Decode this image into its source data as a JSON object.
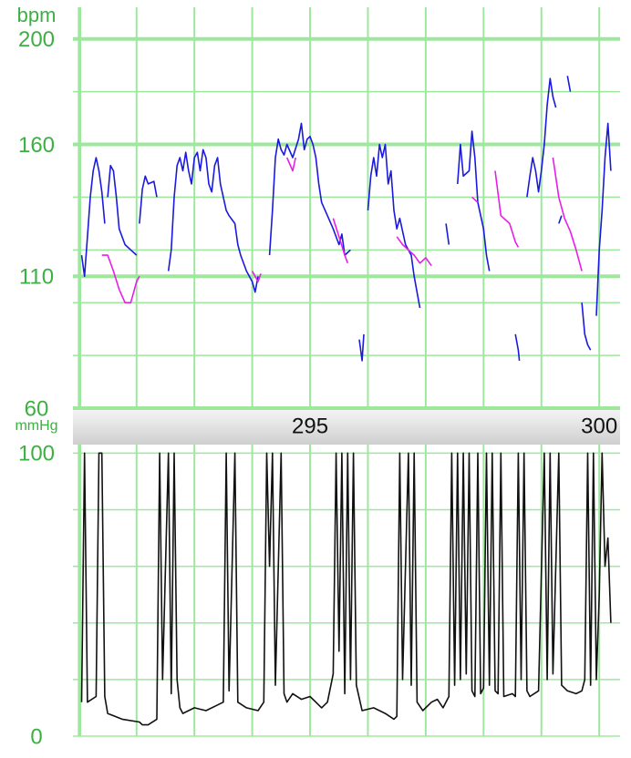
{
  "chart_data": [
    {
      "type": "line",
      "y_label": "bpm",
      "xlim": [
        290.9,
        300.36
      ],
      "ylim": [
        60,
        212
      ],
      "xticks": [
        295,
        300
      ],
      "yticks": [
        60,
        110,
        160,
        200
      ],
      "x_gridlines": [
        291,
        292,
        293,
        294,
        295,
        296,
        297,
        298,
        299,
        300
      ],
      "y_gridlines": [
        80,
        100,
        120,
        140,
        180
      ],
      "grid_color": "#9ee89e",
      "series": [
        {
          "color": "#1a1adf",
          "x": [
            291.05,
            291.1,
            291.15,
            291.2,
            291.25,
            291.3,
            291.35,
            291.4,
            291.45,
            null,
            291.5,
            291.55,
            291.6,
            291.65,
            291.7,
            291.8,
            291.9,
            292.0,
            null,
            292.05,
            292.1,
            292.15,
            292.2,
            292.3,
            292.35,
            null,
            292.55,
            292.6,
            292.65,
            292.7,
            292.75,
            292.8,
            292.85,
            292.9,
            292.95,
            293.0,
            293.05,
            293.1,
            293.15,
            293.2,
            293.25,
            293.3,
            293.35,
            293.4,
            293.45,
            293.55,
            293.6,
            293.7,
            293.75,
            293.8,
            293.9,
            294.0,
            294.05,
            294.1,
            null,
            294.3,
            294.35,
            294.4,
            294.45,
            294.5,
            294.55,
            294.6,
            294.7,
            294.8,
            294.85,
            294.9,
            294.95,
            295.0,
            295.05,
            295.1,
            295.15,
            295.2,
            295.3,
            295.4,
            295.5,
            295.55,
            295.6,
            295.7,
            null,
            295.85,
            295.9,
            295.93,
            null,
            296.0,
            296.05,
            296.1,
            296.15,
            296.2,
            296.25,
            296.3,
            296.35,
            296.4,
            296.45,
            296.5,
            296.55,
            296.65,
            296.75,
            296.8,
            296.9,
            null,
            297.35,
            297.4,
            null,
            297.55,
            297.6,
            297.65,
            297.75,
            297.8,
            297.85,
            297.9,
            298.0,
            298.05,
            298.1,
            null,
            298.55,
            298.6,
            298.62,
            null,
            298.75,
            298.8,
            298.85,
            298.9,
            298.95,
            299.0,
            299.05,
            299.1,
            299.15,
            299.2,
            299.25,
            null,
            299.3,
            299.35,
            null,
            299.45,
            299.5,
            null,
            299.7,
            299.75,
            299.8,
            299.85,
            null,
            299.95,
            300.0,
            300.05,
            300.1,
            300.15,
            300.2
          ],
          "values": [
            118,
            110,
            125,
            140,
            150,
            155,
            150,
            142,
            130,
            null,
            140,
            152,
            150,
            140,
            128,
            122,
            120,
            118,
            null,
            130,
            143,
            148,
            145,
            146,
            140,
            null,
            112,
            120,
            140,
            152,
            155,
            150,
            157,
            150,
            145,
            155,
            157,
            150,
            158,
            155,
            145,
            142,
            152,
            155,
            145,
            135,
            133,
            130,
            122,
            118,
            112,
            108,
            104,
            110,
            null,
            118,
            135,
            155,
            162,
            158,
            156,
            160,
            155,
            162,
            168,
            158,
            162,
            163,
            160,
            155,
            145,
            138,
            133,
            128,
            122,
            126,
            118,
            120,
            null,
            86,
            78,
            88,
            null,
            135,
            148,
            155,
            148,
            160,
            155,
            160,
            145,
            150,
            135,
            128,
            132,
            122,
            118,
            110,
            98,
            null,
            130,
            122,
            null,
            145,
            160,
            148,
            150,
            165,
            155,
            138,
            128,
            118,
            112,
            null,
            88,
            82,
            78,
            null,
            140,
            148,
            155,
            150,
            142,
            150,
            160,
            175,
            185,
            178,
            174,
            null,
            130,
            133,
            null,
            186,
            180,
            null,
            100,
            88,
            84,
            82,
            null,
            95,
            120,
            135,
            155,
            168,
            150
          ]
        },
        {
          "color": "#e81ee8",
          "x": [
            291.4,
            291.5,
            291.6,
            291.7,
            291.8,
            291.9,
            292.0,
            292.05,
            null,
            294.0,
            294.1,
            294.15,
            null,
            294.6,
            294.7,
            294.75,
            null,
            295.4,
            295.5,
            295.6,
            295.65,
            null,
            296.5,
            296.6,
            296.8,
            296.9,
            297.0,
            297.1,
            null,
            297.8,
            297.9,
            null,
            298.2,
            298.3,
            298.45,
            298.55,
            298.6,
            null,
            299.2,
            299.3,
            299.4,
            299.5,
            299.6,
            299.7
          ],
          "values": [
            118,
            118,
            112,
            105,
            100,
            100,
            108,
            110,
            null,
            112,
            108,
            111,
            null,
            155,
            150,
            155,
            null,
            132,
            125,
            118,
            115,
            null,
            125,
            122,
            118,
            115,
            117,
            114,
            null,
            140,
            138,
            null,
            150,
            133,
            130,
            123,
            121,
            null,
            155,
            140,
            132,
            127,
            120,
            112
          ]
        }
      ]
    },
    {
      "type": "line",
      "y_label": "mmHg",
      "xlim": [
        290.9,
        300.36
      ],
      "ylim": [
        0,
        103
      ],
      "yticks": [
        0,
        100
      ],
      "x_gridlines": [
        291,
        292,
        293,
        294,
        295,
        296,
        297,
        298,
        299,
        300
      ],
      "y_gridlines": [
        20,
        40,
        60,
        80
      ],
      "grid_color": "#9ee89e",
      "series": [
        {
          "color": "#111111",
          "x": [
            291.05,
            291.1,
            291.15,
            291.3,
            291.35,
            291.4,
            291.45,
            291.5,
            291.75,
            292.05,
            292.1,
            292.2,
            292.35,
            292.4,
            292.45,
            292.55,
            292.6,
            292.65,
            292.7,
            292.75,
            292.8,
            293.0,
            293.2,
            293.4,
            293.5,
            293.55,
            293.6,
            293.7,
            293.75,
            293.9,
            294.1,
            294.2,
            294.25,
            294.3,
            294.35,
            294.4,
            294.5,
            294.55,
            294.6,
            294.7,
            294.85,
            295.0,
            295.1,
            295.2,
            295.3,
            295.4,
            295.45,
            295.5,
            295.55,
            295.6,
            295.65,
            295.7,
            295.75,
            295.8,
            295.9,
            296.1,
            296.3,
            296.45,
            296.5,
            296.55,
            296.6,
            296.7,
            296.75,
            296.8,
            296.85,
            296.95,
            297.1,
            297.2,
            297.3,
            297.4,
            297.45,
            297.5,
            297.55,
            297.6,
            297.65,
            297.7,
            297.75,
            297.8,
            297.85,
            297.9,
            297.95,
            298.0,
            298.05,
            298.1,
            298.15,
            298.2,
            298.25,
            298.3,
            298.35,
            298.5,
            298.55,
            298.6,
            298.65,
            298.7,
            298.75,
            298.8,
            298.95,
            299.05,
            299.1,
            299.15,
            299.2,
            299.3,
            299.35,
            299.45,
            299.6,
            299.7,
            299.75,
            299.8,
            299.85,
            299.9,
            299.95,
            300.0,
            300.05,
            300.1,
            300.15,
            300.2
          ],
          "values": [
            12,
            100,
            12,
            14,
            100,
            100,
            14,
            8,
            6,
            5,
            4,
            4,
            6,
            100,
            20,
            100,
            15,
            100,
            20,
            10,
            8,
            10,
            9,
            11,
            12,
            100,
            16,
            100,
            12,
            10,
            9,
            12,
            100,
            60,
            100,
            18,
            100,
            15,
            12,
            15,
            13,
            14,
            12,
            10,
            12,
            22,
            100,
            30,
            100,
            15,
            100,
            20,
            100,
            18,
            9,
            10,
            8,
            6,
            7,
            100,
            20,
            100,
            18,
            100,
            12,
            9,
            12,
            13,
            10,
            14,
            100,
            18,
            100,
            20,
            100,
            22,
            100,
            16,
            14,
            100,
            15,
            17,
            100,
            18,
            100,
            16,
            15,
            100,
            14,
            15,
            14,
            100,
            20,
            100,
            16,
            14,
            16,
            100,
            20,
            100,
            22,
            100,
            18,
            16,
            15,
            16,
            20,
            100,
            18,
            100,
            20,
            50,
            100,
            60,
            70,
            40
          ]
        }
      ]
    }
  ]
}
